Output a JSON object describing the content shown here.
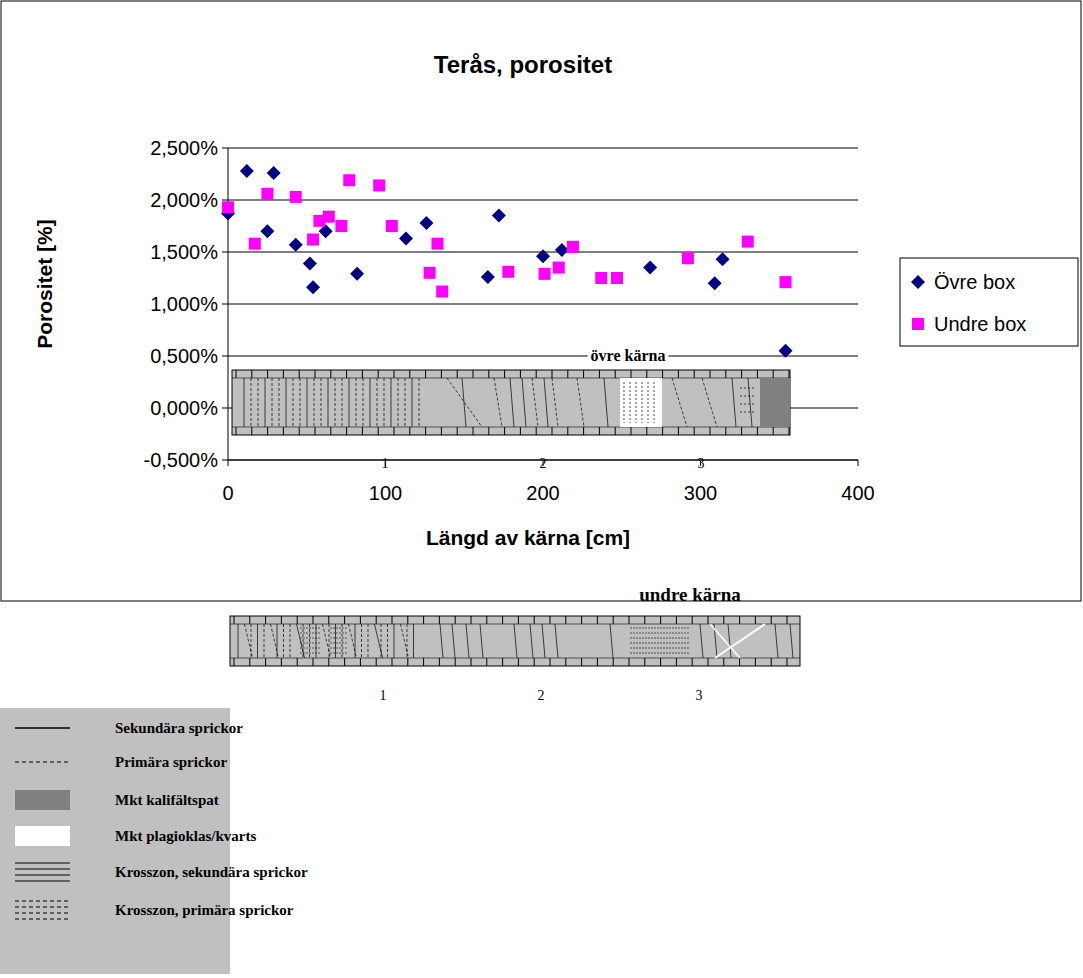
{
  "chart_data": {
    "type": "scatter",
    "title": "Terås, porositet",
    "x_label": "Längd av kärna [cm]",
    "y_label": "Porositet [%]",
    "xlim": [
      0,
      400
    ],
    "xticks": [
      0,
      100,
      200,
      300,
      400
    ],
    "ylim": [
      -0.5,
      2.5
    ],
    "yticks": [
      {
        "value": -0.5,
        "label": "-0,500%"
      },
      {
        "value": 0,
        "label": "0,000%"
      },
      {
        "value": 0.5,
        "label": "0,500%"
      },
      {
        "value": 1,
        "label": "1,000%"
      },
      {
        "value": 1.5,
        "label": "1,500%"
      },
      {
        "value": 2,
        "label": "2,000%"
      },
      {
        "value": 2.5,
        "label": "2,500%"
      }
    ],
    "grid": true,
    "legend": "right",
    "series": [
      {
        "name": "Övre box",
        "color": "#000080",
        "marker": "diamond",
        "x": [
          0,
          12,
          25,
          29,
          43,
          52,
          54,
          62,
          82,
          113,
          126,
          165,
          172,
          200,
          212,
          268,
          309,
          314,
          354
        ],
        "values": [
          1.87,
          2.28,
          1.7,
          2.26,
          1.57,
          1.39,
          1.16,
          1.7,
          1.29,
          1.63,
          1.78,
          1.26,
          1.85,
          1.46,
          1.52,
          1.35,
          1.2,
          1.43,
          0.55
        ]
      },
      {
        "name": "Undre box",
        "color": "#ff00ff",
        "marker": "square",
        "x": [
          0,
          17,
          25,
          43,
          54,
          58,
          64,
          72,
          77,
          96,
          104,
          128,
          133,
          136,
          178,
          201,
          210,
          219,
          237,
          247,
          292,
          330,
          354
        ],
        "values": [
          1.93,
          1.58,
          2.06,
          2.03,
          1.62,
          1.8,
          1.84,
          1.75,
          2.19,
          2.14,
          1.75,
          1.3,
          1.58,
          1.12,
          1.31,
          1.29,
          1.35,
          1.55,
          1.25,
          1.25,
          1.44,
          1.6,
          1.21
        ]
      }
    ]
  },
  "cores": [
    {
      "label": "övre kärna",
      "scale": [
        1,
        2,
        3
      ]
    },
    {
      "label": "undre kärna",
      "scale": [
        1,
        2,
        3
      ]
    }
  ],
  "core_legend": [
    "Sekundära sprickor",
    "Primära sprickor",
    "Mkt kalifältspat",
    "Mkt plagioklas/kvarts",
    "Krosszon, sekundära sprickor",
    "Krosszon, primära sprickor"
  ]
}
